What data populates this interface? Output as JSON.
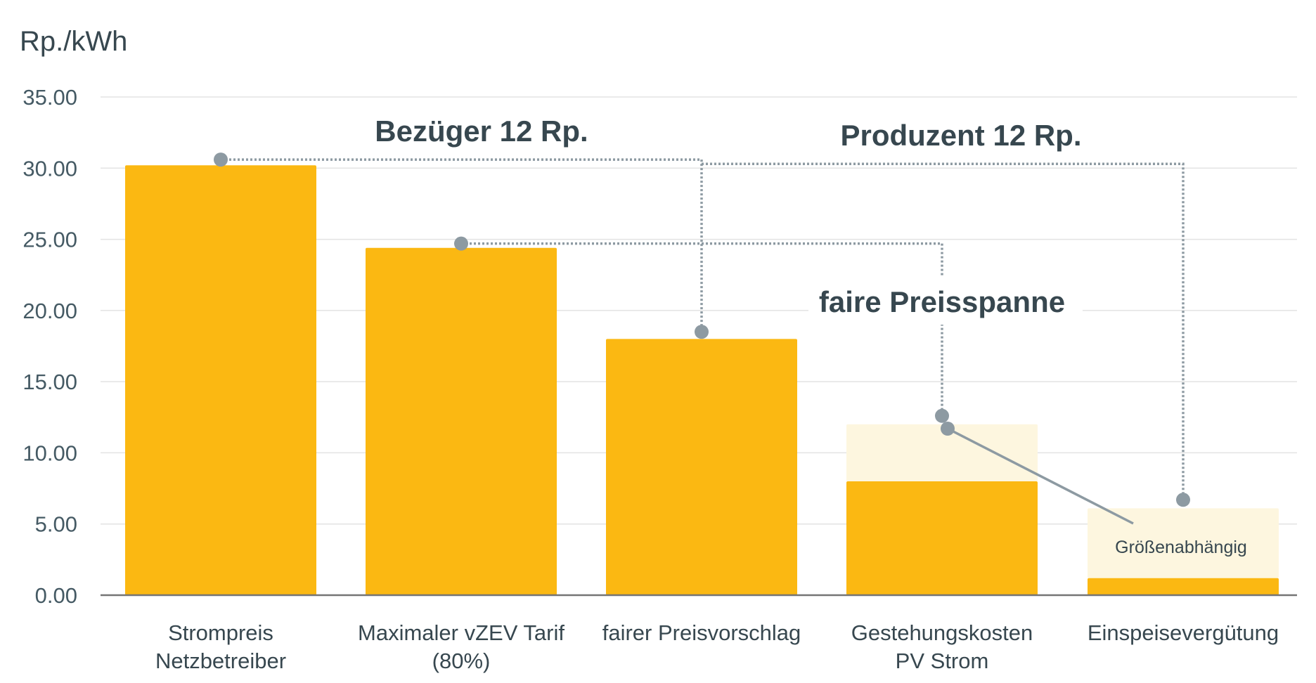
{
  "chart_data": {
    "type": "bar",
    "unit_label": "Rp./kWh",
    "ylim": [
      0,
      35
    ],
    "yticks": [
      "0.00",
      "5.00",
      "10.00",
      "15.00",
      "20.00",
      "25.00",
      "30.00",
      "35.00"
    ],
    "ytick_values": [
      0,
      5,
      10,
      15,
      20,
      25,
      30,
      35
    ],
    "grid": true,
    "categories": [
      [
        "Strompreis",
        "Netzbetreiber"
      ],
      [
        "Maximaler vZEV Tarif",
        "(80%)"
      ],
      [
        "fairer Preisvorschlag"
      ],
      [
        "Gestehungskosten",
        "PV Strom"
      ],
      [
        "Einspeisevergütung"
      ]
    ],
    "series": [
      {
        "values": [
          30.2,
          24.4,
          18.0,
          8.0,
          1.2
        ],
        "color": "#fbb812"
      },
      {
        "values": [
          0,
          0,
          0,
          4.0,
          4.9
        ],
        "color": "#fdf6df"
      }
    ],
    "markers": [
      {
        "category": 0,
        "value": 30.6
      },
      {
        "category": 1,
        "value": 24.7
      },
      {
        "category": 2,
        "value": 18.5
      },
      {
        "category": 3,
        "value": 12.6
      },
      {
        "category": 3,
        "value": 11.7
      },
      {
        "category": 4,
        "value": 6.7
      }
    ],
    "annotations": {
      "bezueger": "Bezüger 12 Rp.",
      "produzent": "Produzent 12 Rp.",
      "preisspanne": "faire Preisspanne",
      "groessen": "Größenabhängig"
    },
    "colors": {
      "bar": "#fbb812",
      "bar_light": "#fdf6df",
      "connector": "#8d9aa2",
      "text": "#37474f"
    }
  }
}
